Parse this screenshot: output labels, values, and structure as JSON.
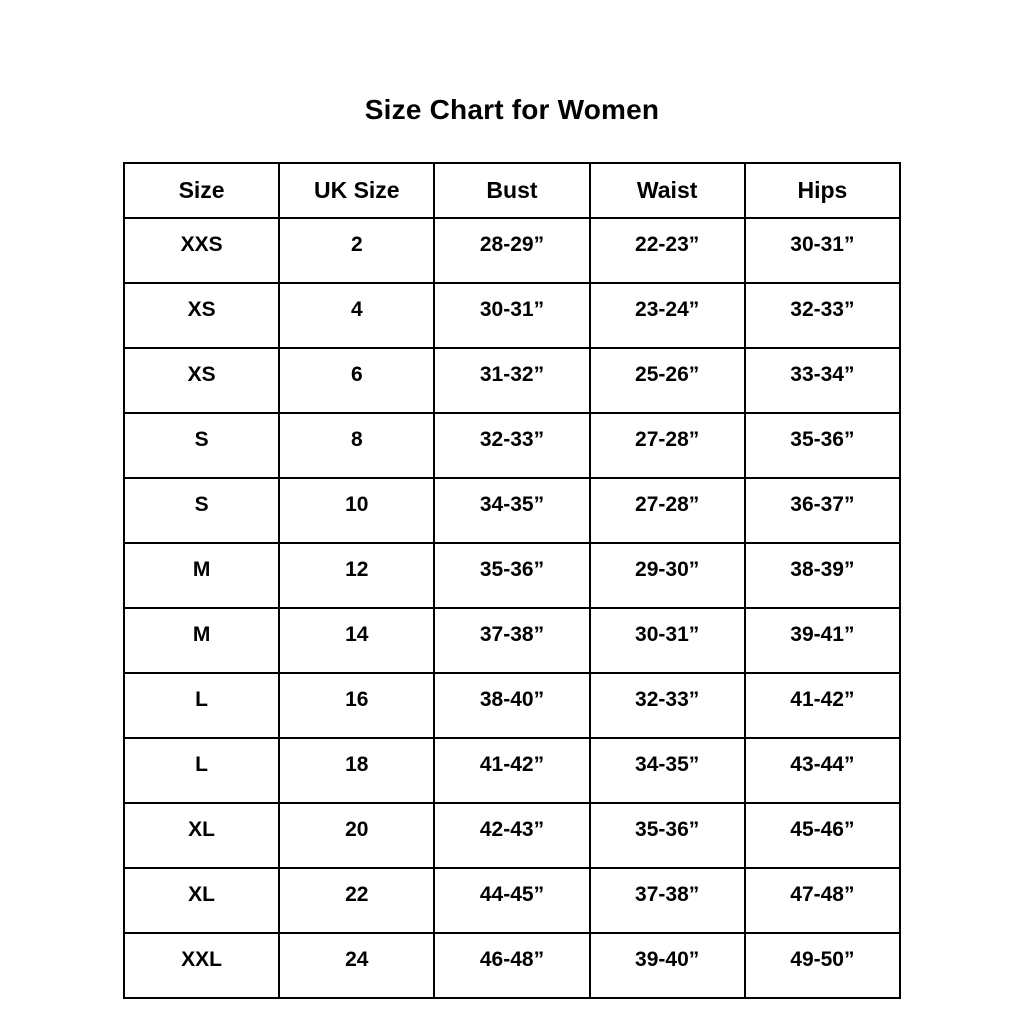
{
  "page": {
    "title": "Size Chart for Women"
  },
  "table": {
    "headers": [
      "Size",
      "UK Size",
      "Bust",
      "Waist",
      "Hips"
    ],
    "rows": [
      [
        "XXS",
        "2",
        "28-29”",
        "22-23”",
        "30-31”"
      ],
      [
        "XS",
        "4",
        "30-31”",
        "23-24”",
        "32-33”"
      ],
      [
        "XS",
        "6",
        "31-32”",
        "25-26”",
        "33-34”"
      ],
      [
        "S",
        "8",
        "32-33”",
        "27-28”",
        "35-36”"
      ],
      [
        "S",
        "10",
        "34-35”",
        "27-28”",
        "36-37”"
      ],
      [
        "M",
        "12",
        "35-36”",
        "29-30”",
        "38-39”"
      ],
      [
        "M",
        "14",
        "37-38”",
        "30-31”",
        "39-41”"
      ],
      [
        "L",
        "16",
        "38-40”",
        "32-33”",
        "41-42”"
      ],
      [
        "L",
        "18",
        "41-42”",
        "34-35”",
        "43-44”"
      ],
      [
        "XL",
        "20",
        "42-43”",
        "35-36”",
        "45-46”"
      ],
      [
        "XL",
        "22",
        "44-45”",
        "37-38”",
        "47-48”"
      ],
      [
        "XXL",
        "24",
        "46-48”",
        "39-40”",
        "49-50”"
      ]
    ]
  },
  "chart_data": {
    "type": "table",
    "title": "Size Chart for Women",
    "columns": [
      "Size",
      "UK Size",
      "Bust",
      "Waist",
      "Hips"
    ],
    "rows": [
      [
        "XXS",
        "2",
        "28-29”",
        "22-23”",
        "30-31”"
      ],
      [
        "XS",
        "4",
        "30-31”",
        "23-24”",
        "32-33”"
      ],
      [
        "XS",
        "6",
        "31-32”",
        "25-26”",
        "33-34”"
      ],
      [
        "S",
        "8",
        "32-33”",
        "27-28”",
        "35-36”"
      ],
      [
        "S",
        "10",
        "34-35”",
        "27-28”",
        "36-37”"
      ],
      [
        "M",
        "12",
        "35-36”",
        "29-30”",
        "38-39”"
      ],
      [
        "M",
        "14",
        "37-38”",
        "30-31”",
        "39-41”"
      ],
      [
        "L",
        "16",
        "38-40”",
        "32-33”",
        "41-42”"
      ],
      [
        "L",
        "18",
        "41-42”",
        "34-35”",
        "43-44”"
      ],
      [
        "XL",
        "20",
        "42-43”",
        "35-36”",
        "45-46”"
      ],
      [
        "XL",
        "22",
        "44-45”",
        "37-38”",
        "47-48”"
      ],
      [
        "XXL",
        "24",
        "46-48”",
        "39-40”",
        "49-50”"
      ]
    ],
    "layout": {
      "grid": true,
      "text_color": "#000000",
      "background_color": "#ffffff",
      "border_color": "#000000"
    }
  }
}
